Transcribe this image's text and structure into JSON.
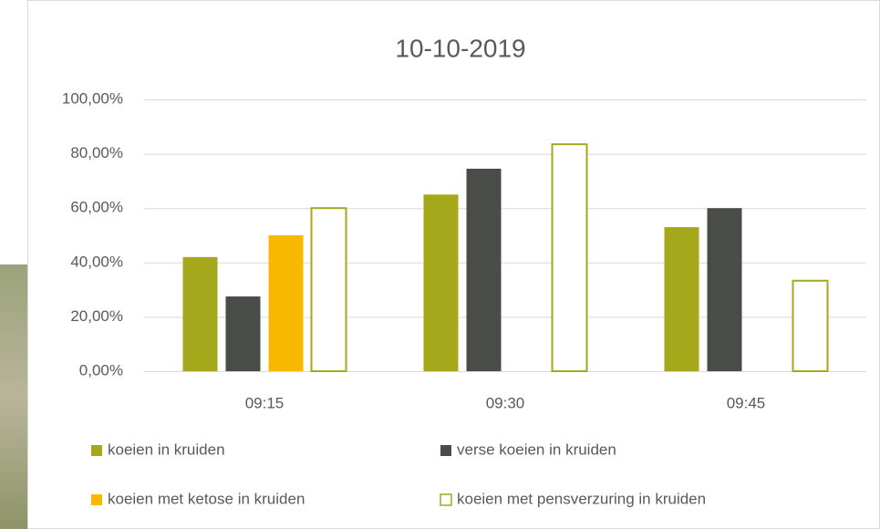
{
  "chart_data": {
    "type": "bar",
    "title": "10-10-2019",
    "categories": [
      "09:15",
      "09:30",
      "09:45"
    ],
    "series": [
      {
        "name": "koeien in kruiden",
        "color": "#a5a81b",
        "filled": true,
        "values": [
          42,
          65,
          53
        ]
      },
      {
        "name": "verse koeien in kruiden",
        "color": "#4a4c47",
        "filled": true,
        "values": [
          27.5,
          74.5,
          60
        ]
      },
      {
        "name": "koeien met ketose in kruiden",
        "color": "#f8b800",
        "filled": true,
        "values": [
          50,
          null,
          null
        ]
      },
      {
        "name": "koeien met pensverzuring in kruiden",
        "color": "#a5a81b",
        "filled": false,
        "values": [
          60,
          83.5,
          33.3
        ]
      }
    ],
    "ylim": [
      0,
      100
    ],
    "yticks": [
      {
        "value": 0,
        "label": "0,00%"
      },
      {
        "value": 20,
        "label": "20,00%"
      },
      {
        "value": 40,
        "label": "40,00%"
      },
      {
        "value": 60,
        "label": "60,00%"
      },
      {
        "value": 80,
        "label": "80,00%"
      },
      {
        "value": 100,
        "label": "100,00%"
      }
    ],
    "grid": true,
    "legend": "bottom"
  }
}
